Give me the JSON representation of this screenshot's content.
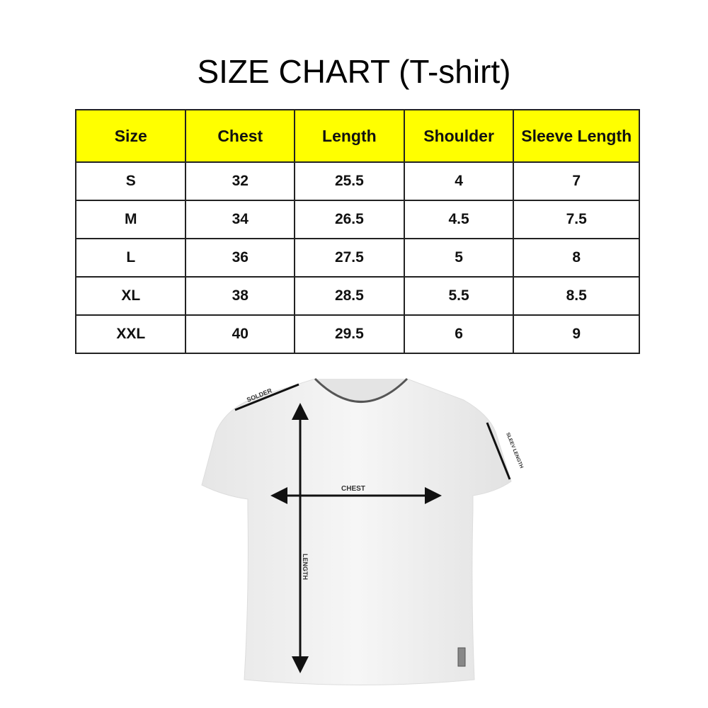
{
  "title": "SIZE CHART (T-shirt)",
  "table": {
    "headers": [
      "Size",
      "Chest",
      "Length",
      "Shoulder",
      "Sleeve Length"
    ],
    "rows": [
      [
        "S",
        "32",
        "25.5",
        "4",
        "7"
      ],
      [
        "M",
        "34",
        "26.5",
        "4.5",
        "7.5"
      ],
      [
        "L",
        "36",
        "27.5",
        "5",
        "8"
      ],
      [
        "XL",
        "38",
        "28.5",
        "5.5",
        "8.5"
      ],
      [
        "XXL",
        "40",
        "29.5",
        "6",
        "9"
      ]
    ],
    "header_color": "#ffff00"
  },
  "diagram": {
    "labels": {
      "shoulder": "SOLDER",
      "sleeve": "SLEEV LENGTH",
      "chest": "CHEST",
      "length": "LENGTH"
    }
  }
}
